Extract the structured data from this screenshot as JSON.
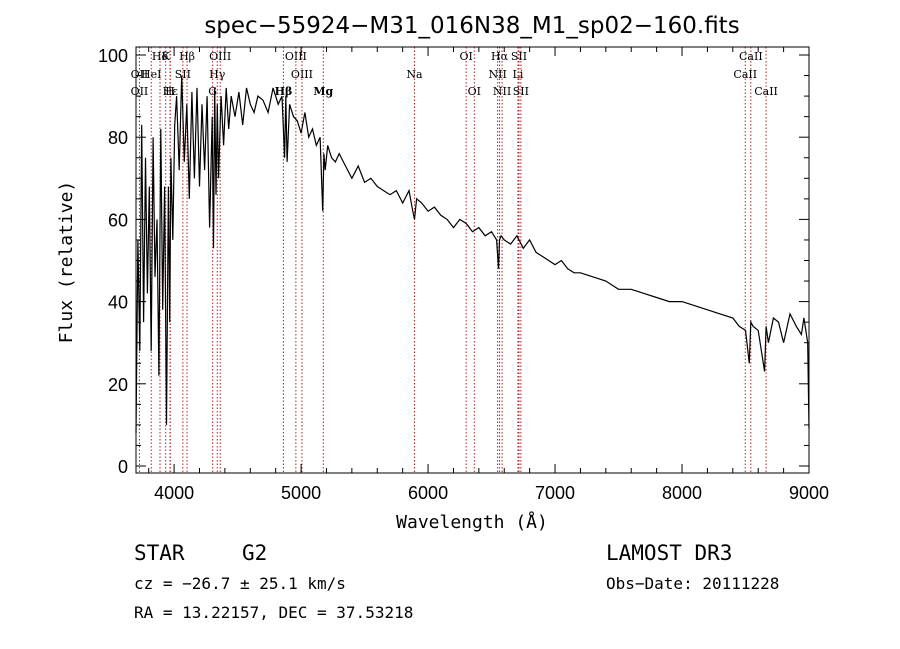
{
  "chart_data": {
    "type": "line",
    "title": "spec−55924−M31_016N38_M1_sp02−160.fits",
    "xlabel": "Wavelength (Å)",
    "ylabel": "Flux (relative)",
    "xlim": [
      3700,
      9000
    ],
    "ylim": [
      0,
      100
    ],
    "xticks": [
      4000,
      5000,
      6000,
      7000,
      8000,
      9000
    ],
    "yticks": [
      0,
      20,
      40,
      60,
      80,
      100
    ],
    "xtick_labels": [
      "4000",
      "5000",
      "6000",
      "7000",
      "8000",
      "9000"
    ],
    "ytick_labels": [
      "0",
      "20",
      "40",
      "60",
      "80",
      "100"
    ],
    "series": [
      {
        "name": "flux",
        "x": [
          3700,
          3715,
          3730,
          3745,
          3760,
          3775,
          3790,
          3805,
          3820,
          3835,
          3850,
          3865,
          3880,
          3895,
          3910,
          3925,
          3940,
          3955,
          3965,
          3975,
          3990,
          4005,
          4020,
          4040,
          4060,
          4080,
          4100,
          4120,
          4140,
          4160,
          4180,
          4200,
          4220,
          4240,
          4260,
          4280,
          4300,
          4310,
          4320,
          4330,
          4340,
          4350,
          4370,
          4390,
          4410,
          4430,
          4450,
          4480,
          4510,
          4540,
          4570,
          4600,
          4630,
          4660,
          4700,
          4740,
          4780,
          4820,
          4850,
          4870,
          4880,
          4890,
          4910,
          4940,
          4970,
          5000,
          5030,
          5060,
          5090,
          5120,
          5150,
          5170,
          5180,
          5190,
          5210,
          5240,
          5270,
          5300,
          5350,
          5400,
          5450,
          5500,
          5550,
          5600,
          5650,
          5700,
          5750,
          5800,
          5850,
          5880,
          5893,
          5910,
          5950,
          6000,
          6050,
          6100,
          6150,
          6200,
          6250,
          6300,
          6350,
          6400,
          6450,
          6500,
          6540,
          6555,
          6563,
          6575,
          6600,
          6650,
          6700,
          6750,
          6800,
          6850,
          6900,
          6950,
          7000,
          7050,
          7100,
          7150,
          7200,
          7300,
          7400,
          7500,
          7600,
          7700,
          7800,
          7900,
          8000,
          8100,
          8200,
          8300,
          8400,
          8450,
          8500,
          8530,
          8542,
          8560,
          8600,
          8650,
          8662,
          8680,
          8720,
          8760,
          8800,
          8850,
          8900,
          8940,
          8960,
          8975,
          8990,
          9000
        ],
        "flux": [
          8,
          55,
          28,
          83,
          35,
          75,
          42,
          68,
          28,
          80,
          46,
          60,
          22,
          82,
          38,
          68,
          10,
          68,
          35,
          75,
          55,
          83,
          90,
          72,
          95,
          74,
          88,
          65,
          91,
          70,
          92,
          68,
          88,
          72,
          90,
          58,
          85,
          53,
          92,
          66,
          88,
          70,
          90,
          78,
          92,
          82,
          90,
          85,
          91,
          83,
          92,
          88,
          86,
          90,
          89,
          86,
          92,
          88,
          90,
          75,
          90,
          74,
          88,
          85,
          84,
          81,
          86,
          80,
          82,
          78,
          80,
          62,
          76,
          72,
          78,
          75,
          74,
          76,
          73,
          70,
          73,
          69,
          70,
          68,
          67,
          66,
          67,
          64,
          67,
          62,
          60,
          65,
          64,
          62,
          63,
          61,
          60,
          58,
          60,
          59,
          57,
          58,
          56,
          57,
          55,
          48,
          55,
          56,
          55,
          54,
          56,
          53,
          55,
          52,
          51,
          50,
          49,
          50,
          48,
          47,
          47,
          46,
          45,
          43,
          43,
          42,
          41,
          40,
          40,
          39,
          38,
          37,
          36,
          34,
          33,
          25,
          35,
          34,
          33,
          23,
          34,
          30,
          36,
          35,
          30,
          37,
          34,
          32,
          36,
          33,
          30,
          9
        ]
      }
    ],
    "lines": [
      {
        "id": "hd",
        "wave": 3889,
        "label": "Hδ"
      },
      {
        "id": "k",
        "wave": 3934,
        "label": "K"
      },
      {
        "id": "hb",
        "wave": 4102,
        "label": "Hβ"
      },
      {
        "id": "oiii-a",
        "wave": 4363,
        "label": "OIII"
      },
      {
        "id": "oiii-b",
        "wave": 4959,
        "label": "OIII"
      },
      {
        "id": "oi-a",
        "wave": 6300,
        "label": "OI"
      },
      {
        "id": "ha",
        "wave": 6563,
        "label": "Hα"
      },
      {
        "id": "sii-a",
        "wave": 6716,
        "label": "SII"
      },
      {
        "id": "caii-a",
        "wave": 8542,
        "label": "CaII"
      },
      {
        "id": "oii",
        "wave": 3727,
        "label": "OII"
      },
      {
        "id": "hei",
        "wave": 3820,
        "label": "HeI"
      },
      {
        "id": "sii-b",
        "wave": 4069,
        "label": "SII"
      },
      {
        "id": "hg",
        "wave": 4340,
        "label": "Hγ"
      },
      {
        "id": "oiii-c",
        "wave": 5007,
        "label": "OIII"
      },
      {
        "id": "na",
        "wave": 5893,
        "label": "Na"
      },
      {
        "id": "nii-a",
        "wave": 6548,
        "label": "NII"
      },
      {
        "id": "li",
        "wave": 6708,
        "label": "Li"
      },
      {
        "id": "caii-b",
        "wave": 8498,
        "label": "CaII"
      },
      {
        "id": "oii-b",
        "wave": 3727,
        "label": "OII"
      },
      {
        "id": "he",
        "wave": 3970,
        "label": "Hε"
      },
      {
        "id": "h",
        "wave": 3968,
        "label": "H"
      },
      {
        "id": "g",
        "wave": 4304,
        "label": "G"
      },
      {
        "id": "hb2",
        "wave": 4861,
        "label": "Hβ"
      },
      {
        "id": "mg",
        "wave": 5175,
        "label": "Mg"
      },
      {
        "id": "oi-b",
        "wave": 6364,
        "label": "OI"
      },
      {
        "id": "nii-b",
        "wave": 6583,
        "label": "NII"
      },
      {
        "id": "sii-c",
        "wave": 6731,
        "label": "SII"
      },
      {
        "id": "caii-c",
        "wave": 8662,
        "label": "CaII"
      }
    ]
  },
  "info": {
    "class": "STAR",
    "subclass": "G2",
    "survey": "LAMOST DR3",
    "cz": "cz = −26.7 ± 25.1 km/s",
    "obsdate": "Obs−Date: 20111228",
    "radec": "RA =  13.22157, DEC =  37.53218"
  },
  "colors": {
    "line_marker": "#b22222",
    "spectrum": "#000000"
  }
}
